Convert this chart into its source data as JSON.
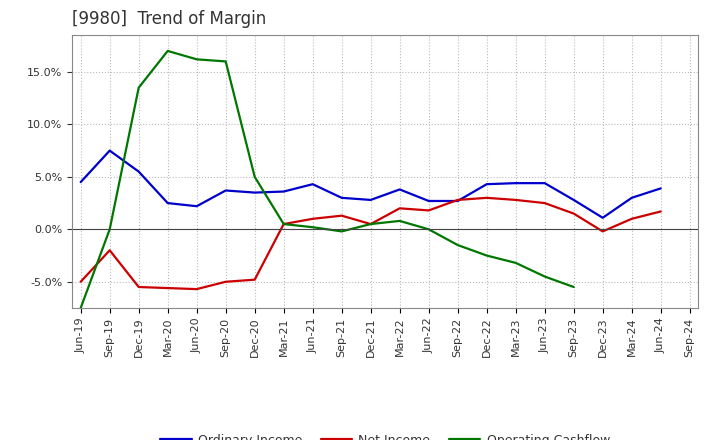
{
  "title": "[9980]  Trend of Margin",
  "x_labels": [
    "Jun-19",
    "Sep-19",
    "Dec-19",
    "Mar-20",
    "Jun-20",
    "Sep-20",
    "Dec-20",
    "Mar-21",
    "Jun-21",
    "Sep-21",
    "Dec-21",
    "Mar-22",
    "Jun-22",
    "Sep-22",
    "Dec-22",
    "Mar-23",
    "Jun-23",
    "Sep-23",
    "Dec-23",
    "Mar-24",
    "Jun-24",
    "Sep-24"
  ],
  "ordinary_income": [
    4.5,
    7.5,
    5.5,
    2.5,
    2.2,
    3.7,
    3.5,
    3.6,
    4.3,
    3.0,
    2.8,
    3.8,
    2.7,
    2.7,
    4.3,
    4.4,
    4.4,
    2.8,
    1.1,
    3.0,
    3.9,
    null
  ],
  "net_income": [
    -5.0,
    -2.0,
    -5.5,
    -5.6,
    -5.7,
    -5.0,
    -4.8,
    0.5,
    1.0,
    1.3,
    0.5,
    2.0,
    1.8,
    2.8,
    3.0,
    2.8,
    2.5,
    1.5,
    -0.2,
    1.0,
    1.7,
    null
  ],
  "operating_cashflow": [
    -7.5,
    0.0,
    13.5,
    17.0,
    16.2,
    16.0,
    5.0,
    0.5,
    0.2,
    -0.2,
    0.5,
    0.8,
    0.0,
    -1.5,
    -2.5,
    -3.2,
    -4.5,
    -5.5,
    null,
    null,
    null,
    null
  ],
  "ylim": [
    -7.5,
    18.5
  ],
  "yticks": [
    -5.0,
    0.0,
    5.0,
    10.0,
    15.0
  ],
  "colors": {
    "ordinary_income": "#0000cc",
    "net_income": "#cc0000",
    "operating_cashflow": "#007700"
  },
  "legend_labels": [
    "Ordinary Income",
    "Net Income",
    "Operating Cashflow"
  ],
  "background_color": "#ffffff",
  "grid_color": "#bbbbbb",
  "title_color": "#333333",
  "title_fontsize": 12,
  "tick_fontsize": 8,
  "legend_fontsize": 9
}
